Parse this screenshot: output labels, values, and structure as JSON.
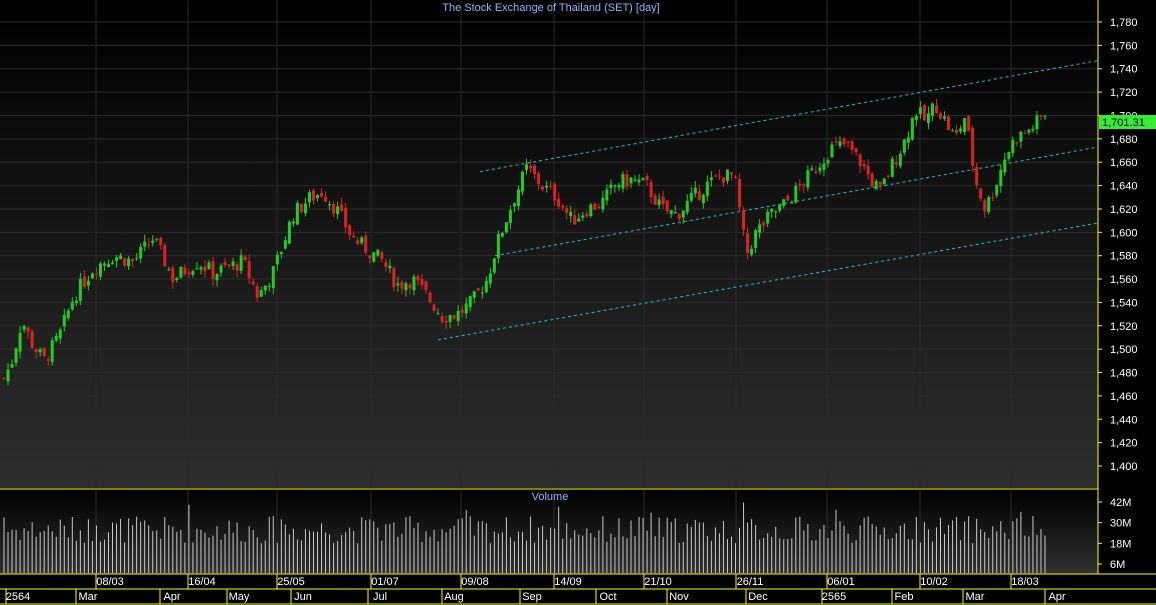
{
  "title": "The Stock Exchange of Thailand (SET) [day]",
  "volume_title": "Volume",
  "last_price_label": "1,701.31",
  "colors": {
    "up": "#22cc22",
    "down": "#dd2222",
    "accent": "#8ab4ff",
    "channel": "#18c0c0",
    "last_bg": "#33ee33",
    "axis": "#ffff00"
  },
  "chart_data": [
    {
      "type": "candlestick",
      "title": "The Stock Exchange of Thailand (SET) [day]",
      "ylim": [
        1380,
        1790
      ],
      "y_ticks": [
        "1,400",
        "1,420",
        "1,440",
        "1,460",
        "1,480",
        "1,500",
        "1,520",
        "1,540",
        "1,560",
        "1,580",
        "1,600",
        "1,620",
        "1,640",
        "1,660",
        "1,680",
        "1,700",
        "1,720",
        "1,740",
        "1,760",
        "1,780"
      ],
      "last_price": 1701.31,
      "close_path": [
        [
          0,
          1475
        ],
        [
          8,
          1490
        ],
        [
          18,
          1525
        ],
        [
          28,
          1505
        ],
        [
          40,
          1490
        ],
        [
          55,
          1510
        ],
        [
          70,
          1545
        ],
        [
          90,
          1570
        ],
        [
          110,
          1580
        ],
        [
          130,
          1575
        ],
        [
          150,
          1595
        ],
        [
          170,
          1560
        ],
        [
          185,
          1570
        ],
        [
          195,
          1575
        ],
        [
          210,
          1565
        ],
        [
          225,
          1570
        ],
        [
          240,
          1575
        ],
        [
          255,
          1545
        ],
        [
          270,
          1565
        ],
        [
          290,
          1615
        ],
        [
          305,
          1628
        ],
        [
          320,
          1635
        ],
        [
          335,
          1618
        ],
        [
          350,
          1595
        ],
        [
          365,
          1585
        ],
        [
          380,
          1575
        ],
        [
          395,
          1555
        ],
        [
          410,
          1560
        ],
        [
          425,
          1545
        ],
        [
          440,
          1528
        ],
        [
          455,
          1530
        ],
        [
          470,
          1540
        ],
        [
          485,
          1560
        ],
        [
          495,
          1590
        ],
        [
          510,
          1625
        ],
        [
          525,
          1655
        ],
        [
          540,
          1640
        ],
        [
          555,
          1630
        ],
        [
          570,
          1610
        ],
        [
          585,
          1620
        ],
        [
          600,
          1625
        ],
        [
          615,
          1642
        ],
        [
          630,
          1645
        ],
        [
          645,
          1640
        ],
        [
          660,
          1620
        ],
        [
          675,
          1615
        ],
        [
          690,
          1628
        ],
        [
          705,
          1640
        ],
        [
          720,
          1648
        ],
        [
          733,
          1648
        ],
        [
          740,
          1610
        ],
        [
          745,
          1580
        ],
        [
          755,
          1600
        ],
        [
          770,
          1615
        ],
        [
          785,
          1625
        ],
        [
          800,
          1640
        ],
        [
          815,
          1655
        ],
        [
          830,
          1672
        ],
        [
          845,
          1675
        ],
        [
          860,
          1660
        ],
        [
          870,
          1645
        ],
        [
          880,
          1635
        ],
        [
          890,
          1655
        ],
        [
          905,
          1680
        ],
        [
          915,
          1705
        ],
        [
          925,
          1695
        ],
        [
          935,
          1710
        ],
        [
          945,
          1695
        ],
        [
          955,
          1680
        ],
        [
          965,
          1700
        ],
        [
          975,
          1645
        ],
        [
          985,
          1620
        ],
        [
          995,
          1640
        ],
        [
          1005,
          1665
        ],
        [
          1015,
          1680
        ],
        [
          1030,
          1688
        ],
        [
          1045,
          1701
        ]
      ],
      "channel_lines": [
        {
          "from": [
            "09/08",
            1508
          ],
          "to": [
            "Apr",
            1608
          ]
        },
        {
          "from": [
            "09/08",
            1580
          ],
          "to": [
            "Apr",
            1673
          ]
        },
        {
          "from": [
            "09/08",
            1652
          ],
          "to": [
            "Apr",
            1747
          ]
        }
      ]
    },
    {
      "type": "bar",
      "title": "Volume",
      "ylim": [
        0,
        48
      ],
      "y_ticks": [
        "6M",
        "18M",
        "30M",
        "42M"
      ],
      "unit": "M"
    }
  ],
  "x_axis": {
    "upper_ticks": [
      "08/03",
      "16/04",
      "25/05",
      "01/07",
      "09/08",
      "14/09",
      "21/10",
      "26/11",
      "06/01",
      "10/02",
      "18/03"
    ],
    "lower_ticks": [
      "2564",
      "Mar",
      "Apr",
      "May",
      "Jun",
      "Jul",
      "Aug",
      "Sep",
      "Oct",
      "Nov",
      "Dec",
      "2565",
      "Feb",
      "Mar",
      "Apr"
    ]
  }
}
